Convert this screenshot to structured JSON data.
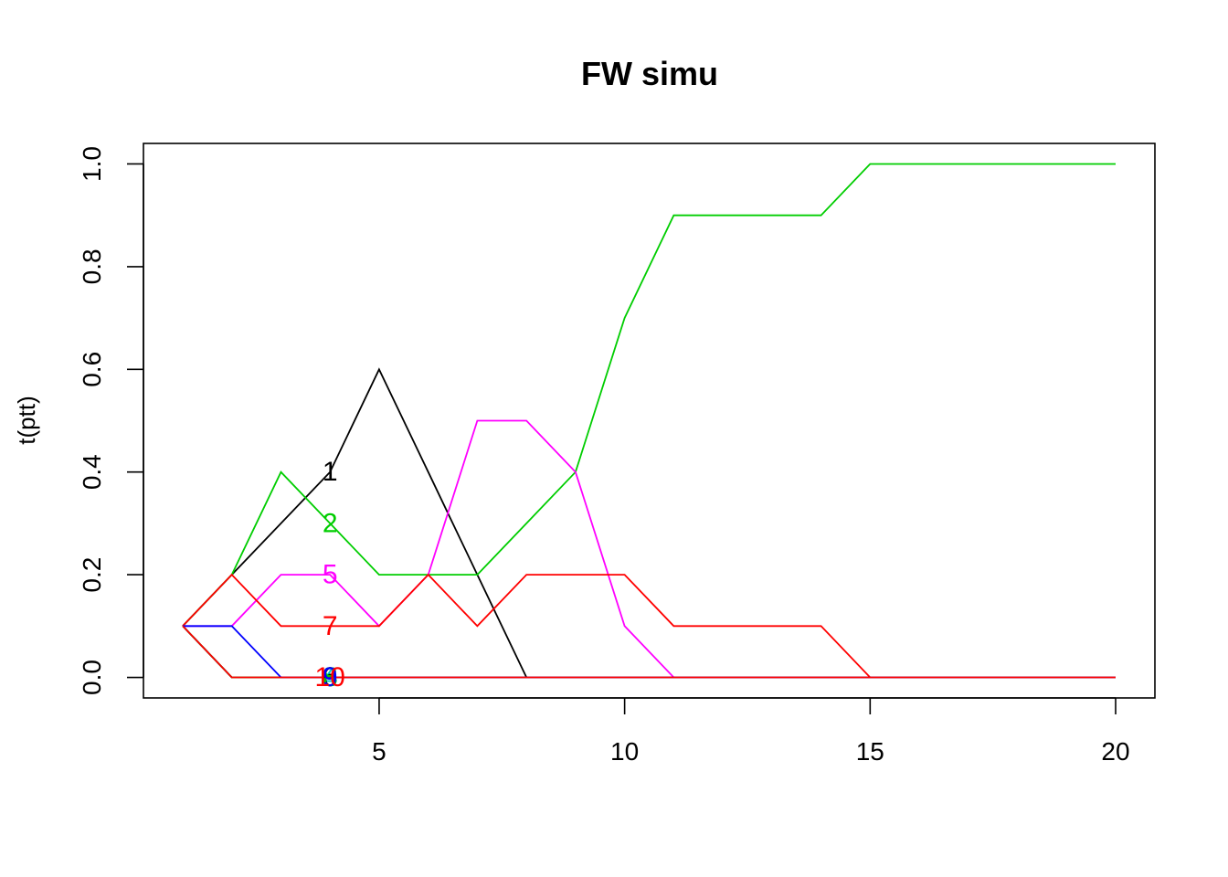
{
  "chart_data": {
    "type": "line",
    "title": "FW simu",
    "xlabel": "",
    "ylabel": "t(ptt)",
    "xlim": [
      0.2,
      20.8
    ],
    "ylim": [
      -0.04,
      1.04
    ],
    "xticks": [
      5,
      10,
      15,
      20
    ],
    "yticks": [
      0.0,
      0.2,
      0.4,
      0.6,
      0.8,
      1.0
    ],
    "ytick_labels": [
      "0.0",
      "0.2",
      "0.4",
      "0.6",
      "0.8",
      "1.0"
    ],
    "grid": false,
    "legend": "none",
    "x": [
      1,
      2,
      3,
      4,
      5,
      6,
      7,
      8,
      9,
      10,
      11,
      12,
      13,
      14,
      15,
      16,
      17,
      18,
      19,
      20
    ],
    "label_x": 4,
    "series": [
      {
        "label": "1",
        "color": "#000000",
        "values": [
          0.1,
          0.2,
          0.3,
          0.4,
          0.6,
          0.4,
          0.2,
          0.0,
          0,
          0,
          0,
          0,
          0,
          0,
          0,
          0,
          0,
          0,
          0,
          0
        ]
      },
      {
        "label": "2",
        "color": "#00cd00",
        "values": [
          0.1,
          0.2,
          0.4,
          0.3,
          0.2,
          0.2,
          0.2,
          0.3,
          0.4,
          0.7,
          0.9,
          0.9,
          0.9,
          0.9,
          1.0,
          1.0,
          1.0,
          1.0,
          1.0,
          1.0
        ]
      },
      {
        "label": "3",
        "color": "#0000ff",
        "values": [
          0.1,
          0.0,
          0.0,
          0.0,
          0,
          0,
          0,
          0,
          0,
          0,
          0,
          0,
          0,
          0,
          0,
          0,
          0,
          0,
          0,
          0
        ]
      },
      {
        "label": "4",
        "color": "#00cdcd",
        "values": [
          0.1,
          0.0,
          0.0,
          0.0,
          0,
          0,
          0,
          0,
          0,
          0,
          0,
          0,
          0,
          0,
          0,
          0,
          0,
          0,
          0,
          0
        ]
      },
      {
        "label": "5",
        "color": "#ff00ff",
        "values": [
          0.1,
          0.1,
          0.2,
          0.2,
          0.1,
          0.2,
          0.5,
          0.5,
          0.4,
          0.1,
          0.0,
          0,
          0,
          0,
          0,
          0,
          0,
          0,
          0,
          0
        ]
      },
      {
        "label": "6",
        "color": "#000000",
        "values": [
          0.1,
          0.0,
          0.0,
          0.0,
          0,
          0,
          0,
          0,
          0,
          0,
          0,
          0,
          0,
          0,
          0,
          0,
          0,
          0,
          0,
          0
        ]
      },
      {
        "label": "7",
        "color": "#ff0000",
        "values": [
          0.1,
          0.2,
          0.1,
          0.1,
          0.1,
          0.2,
          0.1,
          0.2,
          0.2,
          0.2,
          0.1,
          0.1,
          0.1,
          0.1,
          0.0,
          0,
          0,
          0,
          0,
          0
        ]
      },
      {
        "label": "8",
        "color": "#00cd00",
        "values": [
          0.1,
          0.0,
          0.0,
          0.0,
          0,
          0,
          0,
          0,
          0,
          0,
          0,
          0,
          0,
          0,
          0,
          0,
          0,
          0,
          0,
          0
        ]
      },
      {
        "label": "9",
        "color": "#0000ff",
        "values": [
          0.1,
          0.1,
          0.0,
          0.0,
          0,
          0,
          0,
          0,
          0,
          0,
          0,
          0,
          0,
          0,
          0,
          0,
          0,
          0,
          0,
          0
        ]
      },
      {
        "label": "10",
        "color": "#ff0000",
        "values": [
          0.1,
          0.0,
          0.0,
          0.0,
          0,
          0,
          0,
          0,
          0,
          0,
          0,
          0,
          0,
          0,
          0,
          0,
          0,
          0,
          0,
          0
        ]
      }
    ]
  }
}
